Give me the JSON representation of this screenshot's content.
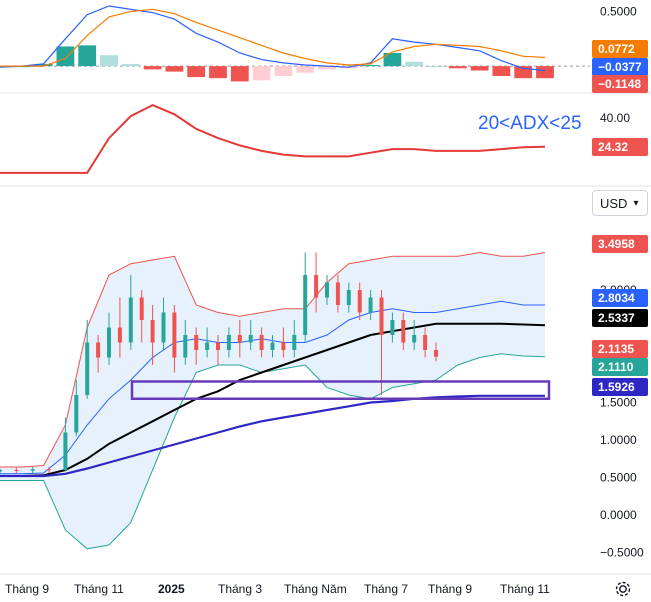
{
  "currency": {
    "label": "USD",
    "chevron_icon": "chevron-down-icon"
  },
  "settings_icon": "gear-icon",
  "colors": {
    "up": "#26a69a",
    "down": "#ef5350",
    "bb_band": "#ef5350",
    "bb_mid": "#2962ff",
    "ma_black": "#000000",
    "ma_blue": "#2e27c4",
    "bb_lower": "#26a69a",
    "fill": "#e3effb",
    "macd_line": "#2962ff",
    "signal_line": "#f57c00",
    "adx_line": "#e53935",
    "box": "#673ab7"
  },
  "chart_data": [
    {
      "type": "bar",
      "name": "MACD",
      "y_ticks": [
        "0.5000"
      ],
      "ylim": [
        -0.2,
        0.55
      ],
      "value_badges": [
        {
          "value": "0.0772",
          "color": "#f57c00"
        },
        {
          "value": "−0.0377",
          "color": "#2962ff"
        },
        {
          "value": "−0.1148",
          "color": "#ef5350"
        }
      ],
      "x": [
        0,
        4,
        8,
        12,
        16,
        20,
        24,
        28,
        32,
        36,
        40,
        44,
        48,
        52,
        56,
        60,
        64,
        68,
        72,
        76,
        80,
        84,
        88,
        92,
        96,
        100
      ],
      "macd": [
        -0.01,
        0.0,
        0.02,
        0.25,
        0.47,
        0.55,
        0.52,
        0.49,
        0.43,
        0.3,
        0.22,
        0.12,
        0.06,
        0.03,
        0.01,
        0.0,
        -0.01,
        0.03,
        0.25,
        0.22,
        0.2,
        0.17,
        0.14,
        0.05,
        -0.02,
        -0.04
      ],
      "signal": [
        0.0,
        0.0,
        0.0,
        0.07,
        0.28,
        0.45,
        0.5,
        0.52,
        0.48,
        0.4,
        0.33,
        0.26,
        0.19,
        0.12,
        0.07,
        0.03,
        0.01,
        0.02,
        0.13,
        0.18,
        0.2,
        0.19,
        0.18,
        0.14,
        0.09,
        0.08
      ],
      "histogram": [
        -0.01,
        0.0,
        0.02,
        0.18,
        0.19,
        0.1,
        0.02,
        -0.03,
        -0.05,
        -0.1,
        -0.11,
        -0.14,
        -0.13,
        -0.09,
        -0.06,
        -0.03,
        -0.02,
        0.01,
        0.12,
        0.04,
        0.0,
        -0.02,
        -0.04,
        -0.09,
        -0.11,
        -0.11
      ]
    },
    {
      "type": "line",
      "name": "ADX",
      "annotation": "20<ADX<25",
      "y_ticks": [
        "40.00"
      ],
      "ylim": [
        5,
        52
      ],
      "value_badges": [
        {
          "value": "24.32",
          "color": "#ef5350"
        }
      ],
      "x": [
        0,
        8,
        16,
        20,
        24,
        28,
        32,
        36,
        40,
        44,
        48,
        52,
        56,
        60,
        64,
        68,
        72,
        76,
        80,
        84,
        88,
        92,
        96,
        100
      ],
      "values": [
        10,
        10,
        10,
        29,
        41,
        47,
        42,
        34,
        29,
        25,
        22,
        20,
        19,
        19,
        19,
        21,
        23,
        23,
        22,
        22,
        22,
        23,
        24,
        24.3
      ]
    },
    {
      "type": "line",
      "name": "Price",
      "x_tick_labels": [
        "Tháng 9",
        "Tháng 11",
        "2025",
        "Tháng 3",
        "Tháng Năm",
        "Tháng 7",
        "Tháng 9",
        "Tháng 11"
      ],
      "y_ticks": [
        "3.0000",
        "1.5000",
        "1.0000",
        "0.5000",
        "0.0000",
        "−0.5000"
      ],
      "ylim": [
        -0.6,
        3.8
      ],
      "value_badges": [
        {
          "value": "3.4958",
          "color": "#ef5350"
        },
        {
          "value": "2.8034",
          "color": "#2962ff"
        },
        {
          "value": "2.5337",
          "color": "#000000"
        },
        {
          "value": "2.1135",
          "color": "#ef5350"
        },
        {
          "value": "2.1110",
          "color": "#26a69a"
        },
        {
          "value": "1.5926",
          "color": "#2e27c4"
        }
      ],
      "support_zone": [
        1.55,
        1.78
      ],
      "bb_x": [
        0,
        4,
        8,
        12,
        16,
        20,
        24,
        28,
        32,
        36,
        40,
        44,
        48,
        52,
        56,
        60,
        64,
        68,
        72,
        76,
        80,
        84,
        88,
        92,
        96,
        100
      ],
      "bb_upper": [
        0.64,
        0.64,
        0.66,
        1.2,
        2.5,
        3.2,
        3.35,
        3.4,
        3.45,
        2.8,
        2.7,
        2.65,
        2.7,
        2.75,
        2.75,
        3.1,
        3.35,
        3.4,
        3.45,
        3.45,
        3.45,
        3.45,
        3.5,
        3.45,
        3.45,
        3.5
      ],
      "bb_mid": [
        0.55,
        0.55,
        0.56,
        0.8,
        1.2,
        1.55,
        1.8,
        2.1,
        2.3,
        2.35,
        2.3,
        2.3,
        2.35,
        2.3,
        2.3,
        2.4,
        2.6,
        2.7,
        2.75,
        2.7,
        2.7,
        2.75,
        2.8,
        2.85,
        2.8,
        2.8
      ],
      "bb_lower": [
        0.46,
        0.46,
        0.46,
        -0.2,
        -0.45,
        -0.4,
        -0.1,
        0.6,
        1.3,
        1.9,
        2.0,
        2.0,
        1.9,
        1.95,
        2.0,
        1.7,
        1.6,
        1.55,
        1.7,
        1.75,
        1.8,
        2.0,
        2.1,
        2.15,
        2.12,
        2.11
      ],
      "ma_black": [
        0.52,
        0.52,
        0.53,
        0.6,
        0.75,
        0.95,
        1.1,
        1.25,
        1.4,
        1.55,
        1.65,
        1.8,
        1.9,
        2.0,
        2.1,
        2.2,
        2.3,
        2.4,
        2.45,
        2.5,
        2.55,
        2.55,
        2.55,
        2.55,
        2.54,
        2.53
      ],
      "ma_blue": [
        0.52,
        0.52,
        0.52,
        0.55,
        0.62,
        0.7,
        0.78,
        0.86,
        0.94,
        1.02,
        1.1,
        1.18,
        1.25,
        1.3,
        1.35,
        1.4,
        1.45,
        1.5,
        1.52,
        1.55,
        1.57,
        1.58,
        1.59,
        1.59,
        1.59,
        1.59
      ],
      "candles": [
        [
          0,
          0.58,
          0.6,
          0.54,
          0.62
        ],
        [
          3,
          0.6,
          0.59,
          0.55,
          0.63
        ],
        [
          6,
          0.59,
          0.61,
          0.56,
          0.64
        ],
        [
          9,
          0.61,
          0.6,
          0.56,
          0.64
        ],
        [
          12,
          0.6,
          1.1,
          0.58,
          1.3
        ],
        [
          14,
          1.1,
          1.6,
          1.05,
          1.8
        ],
        [
          16,
          1.6,
          2.3,
          1.55,
          2.6
        ],
        [
          18,
          2.3,
          2.1,
          1.9,
          2.4
        ],
        [
          20,
          2.1,
          2.5,
          2.0,
          2.7
        ],
        [
          22,
          2.5,
          2.3,
          2.1,
          2.9
        ],
        [
          24,
          2.3,
          2.9,
          2.2,
          3.2
        ],
        [
          26,
          2.9,
          2.6,
          2.3,
          3.0
        ],
        [
          28,
          2.6,
          2.3,
          2.0,
          2.8
        ],
        [
          30,
          2.3,
          2.7,
          2.2,
          2.9
        ],
        [
          32,
          2.7,
          2.1,
          1.9,
          2.8
        ],
        [
          34,
          2.1,
          2.4,
          2.0,
          2.6
        ],
        [
          36,
          2.4,
          2.2,
          2.0,
          2.5
        ],
        [
          38,
          2.2,
          2.3,
          2.1,
          2.5
        ],
        [
          40,
          2.3,
          2.2,
          2.0,
          2.4
        ],
        [
          42,
          2.2,
          2.4,
          2.1,
          2.5
        ],
        [
          44,
          2.4,
          2.3,
          2.1,
          2.6
        ],
        [
          46,
          2.3,
          2.4,
          2.2,
          2.6
        ],
        [
          48,
          2.4,
          2.2,
          2.1,
          2.5
        ],
        [
          50,
          2.2,
          2.3,
          2.1,
          2.4
        ],
        [
          52,
          2.3,
          2.2,
          2.1,
          2.5
        ],
        [
          54,
          2.2,
          2.4,
          2.1,
          2.6
        ],
        [
          56,
          2.4,
          3.2,
          2.3,
          3.5
        ],
        [
          58,
          3.2,
          2.9,
          2.7,
          3.5
        ],
        [
          60,
          2.9,
          3.1,
          2.8,
          3.2
        ],
        [
          62,
          3.1,
          2.8,
          2.7,
          3.2
        ],
        [
          64,
          2.8,
          3.0,
          2.7,
          3.1
        ],
        [
          66,
          3.0,
          2.7,
          2.6,
          3.1
        ],
        [
          68,
          2.7,
          2.9,
          2.6,
          3.0
        ],
        [
          70,
          2.9,
          2.4,
          1.6,
          3.0
        ],
        [
          72,
          2.4,
          2.6,
          2.3,
          2.7
        ],
        [
          74,
          2.6,
          2.3,
          2.2,
          2.7
        ],
        [
          76,
          2.3,
          2.4,
          2.2,
          2.6
        ],
        [
          78,
          2.4,
          2.2,
          2.1,
          2.5
        ],
        [
          80,
          2.2,
          2.11,
          2.05,
          2.3
        ]
      ]
    }
  ]
}
